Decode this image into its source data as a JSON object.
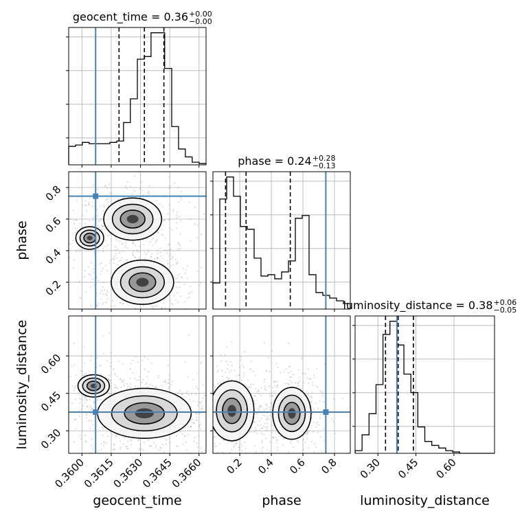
{
  "chart_data": {
    "type": "corner",
    "parameters": [
      "geocent_time",
      "phase",
      "luminosity_distance"
    ],
    "axis_labels": [
      "geocent_time",
      "phase",
      "luminosity_distance"
    ],
    "truths": {
      "geocent_time": 0.3607,
      "phase": 0.745,
      "luminosity_distance": 0.375
    },
    "truth_color": "#4682b4",
    "grid": true,
    "titles": [
      {
        "param": "geocent_time",
        "text": "geocent_time = 0.36",
        "upper": "+0.00",
        "lower": "−0.00"
      },
      {
        "param": "phase",
        "text": "phase = 0.24",
        "upper": "+0.28",
        "lower": "−0.13"
      },
      {
        "param": "luminosity_distance",
        "text": "luminosity_distance = 0.38",
        "upper": "+0.06",
        "lower": "−0.05"
      }
    ],
    "axes": {
      "geocent_time": {
        "range": [
          0.35932,
          0.36636
        ],
        "ticks": [
          0.36,
          0.3615,
          0.363,
          0.3645,
          0.366
        ],
        "tick_labels": [
          "0.3600",
          "0.3615",
          "0.3630",
          "0.3645",
          "0.3660"
        ]
      },
      "phase": {
        "range": [
          0.03,
          0.9
        ],
        "ticks": [
          0.2,
          0.4,
          0.6,
          0.8
        ],
        "tick_labels": [
          "0.2",
          "0.4",
          "0.6",
          "0.8"
        ]
      },
      "luminosity_distance": {
        "range": [
          0.21,
          0.76
        ],
        "ticks": [
          0.3,
          0.45,
          0.6
        ],
        "tick_labels": [
          "0.30",
          "0.45",
          "0.60"
        ]
      }
    },
    "histograms": {
      "geocent_time": {
        "bin_edges": [
          0.35932,
          0.35967,
          0.36002,
          0.36037,
          0.36072,
          0.36108,
          0.36143,
          0.36178,
          0.36213,
          0.36248,
          0.36284,
          0.36319,
          0.36354,
          0.36389,
          0.36424,
          0.3646,
          0.36495,
          0.3653,
          0.36565,
          0.366,
          0.36636
        ],
        "counts": [
          0.14,
          0.15,
          0.17,
          0.16,
          0.16,
          0.16,
          0.17,
          0.18,
          0.32,
          0.5,
          0.8,
          0.82,
          1.0,
          1.0,
          0.73,
          0.29,
          0.12,
          0.06,
          0.02,
          0.01
        ],
        "quantiles": [
          0.3619,
          0.3632,
          0.3642
        ]
      },
      "phase": {
        "bin_edges": [
          0.03,
          0.0735,
          0.117,
          0.1605,
          0.204,
          0.2475,
          0.291,
          0.3345,
          0.378,
          0.4215,
          0.465,
          0.5085,
          0.552,
          0.5955,
          0.639,
          0.6825,
          0.726,
          0.7695,
          0.813,
          0.8565,
          0.9
        ],
        "counts": [
          0.19,
          0.8,
          0.96,
          0.82,
          0.6,
          0.58,
          0.37,
          0.24,
          0.25,
          0.22,
          0.27,
          0.35,
          0.66,
          0.68,
          0.25,
          0.12,
          0.1,
          0.08,
          0.06,
          0.04
        ],
        "quantiles": [
          0.11,
          0.24,
          0.52
        ]
      },
      "luminosity_distance": {
        "bin_edges": [
          0.21,
          0.2375,
          0.265,
          0.2925,
          0.32,
          0.3475,
          0.375,
          0.4025,
          0.43,
          0.4575,
          0.485,
          0.5125,
          0.54,
          0.5675,
          0.595,
          0.6225,
          0.65,
          0.6775,
          0.705,
          0.7325,
          0.76
        ],
        "counts": [
          0.02,
          0.14,
          0.3,
          0.52,
          0.9,
          1.0,
          0.82,
          0.6,
          0.46,
          0.2,
          0.09,
          0.06,
          0.04,
          0.02,
          0.01,
          0.0,
          0.0,
          0.0,
          0.0,
          0.0
        ],
        "quantiles": [
          0.33,
          0.38,
          0.44
        ]
      }
    },
    "contour_pairs": [
      {
        "x": "geocent_time",
        "y": "phase",
        "modes": [
          {
            "x": 0.3631,
            "y": 0.2,
            "weight": 1.0,
            "sx": 0.0008,
            "sy": 0.07
          },
          {
            "x": 0.3626,
            "y": 0.6,
            "weight": 0.55,
            "sx": 0.001,
            "sy": 0.09
          },
          {
            "x": 0.3604,
            "y": 0.48,
            "weight": 0.2,
            "sx": 0.0008,
            "sy": 0.08
          }
        ]
      },
      {
        "x": "geocent_time",
        "y": "luminosity_distance",
        "modes": [
          {
            "x": 0.3632,
            "y": 0.37,
            "weight": 1.0,
            "sx": 0.0012,
            "sy": 0.05
          },
          {
            "x": 0.3606,
            "y": 0.48,
            "weight": 0.2,
            "sx": 0.0009,
            "sy": 0.05
          }
        ]
      },
      {
        "x": "phase",
        "y": "luminosity_distance",
        "modes": [
          {
            "x": 0.15,
            "y": 0.38,
            "weight": 1.0,
            "sx": 0.07,
            "sy": 0.06
          },
          {
            "x": 0.53,
            "y": 0.37,
            "weight": 0.75,
            "sx": 0.07,
            "sy": 0.06
          }
        ]
      }
    ]
  }
}
